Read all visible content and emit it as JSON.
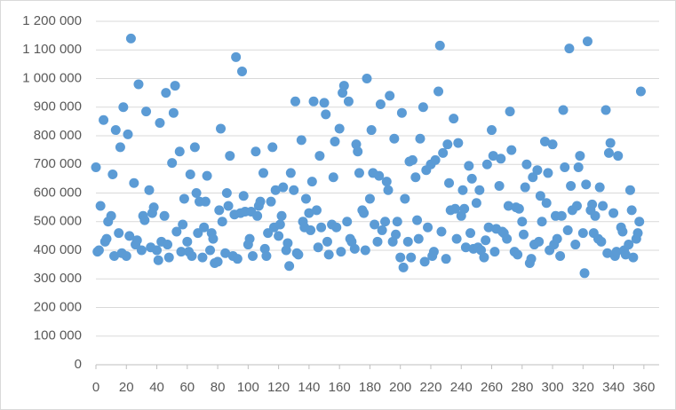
{
  "chart_data": {
    "type": "scatter",
    "color": "#5b9bd5",
    "grid": true,
    "xlim": [
      0,
      370
    ],
    "xticks": [
      0,
      20,
      40,
      60,
      80,
      100,
      120,
      140,
      160,
      180,
      200,
      220,
      240,
      260,
      280,
      300,
      320,
      340,
      360
    ],
    "ylim": [
      0,
      1200000
    ],
    "yticks": [
      0,
      {
        "value": 100000,
        "label": "100 000"
      },
      {
        "value": 200000,
        "label": "200 000"
      },
      {
        "value": 300000,
        "label": "300 000"
      },
      {
        "value": 400000,
        "label": "400 000"
      },
      {
        "value": 500000,
        "label": "500 000"
      },
      {
        "value": 600000,
        "label": "600 000"
      },
      {
        "value": 700000,
        "label": "700 000"
      },
      {
        "value": 800000,
        "label": "800 000"
      },
      {
        "value": 900000,
        "label": "900 000"
      },
      {
        "value": 1000000,
        "label": "1 000 000"
      },
      {
        "value": 1100000,
        "label": "1 100 000"
      },
      {
        "value": 1200000,
        "label": "1 200 000"
      }
    ],
    "x": [
      0,
      1,
      2,
      3,
      5,
      6,
      7,
      8,
      10,
      11,
      12,
      13,
      15,
      16,
      17,
      18,
      20,
      21,
      22,
      23,
      25,
      26,
      27,
      28,
      30,
      31,
      32,
      33,
      35,
      36,
      37,
      38,
      40,
      41,
      42,
      43,
      45,
      46,
      47,
      48,
      50,
      51,
      52,
      53,
      55,
      56,
      57,
      58,
      60,
      61,
      62,
      63,
      65,
      66,
      67,
      68,
      70,
      71,
      72,
      73,
      75,
      76,
      77,
      78,
      80,
      81,
      82,
      83,
      85,
      86,
      87,
      88,
      90,
      91,
      92,
      93,
      95,
      96,
      97,
      98,
      100,
      101,
      102,
      103,
      105,
      106,
      107,
      108,
      110,
      111,
      112,
      113,
      115,
      116,
      117,
      118,
      120,
      121,
      122,
      123,
      125,
      126,
      127,
      128,
      130,
      131,
      132,
      133,
      135,
      136,
      137,
      138,
      140,
      141,
      142,
      143,
      145,
      146,
      147,
      148,
      150,
      151,
      152,
      153,
      155,
      156,
      157,
      158,
      160,
      161,
      162,
      163,
      165,
      166,
      167,
      168,
      170,
      171,
      172,
      173,
      175,
      176,
      177,
      178,
      180,
      181,
      182,
      183,
      185,
      186,
      187,
      188,
      190,
      191,
      192,
      193,
      195,
      196,
      197,
      198,
      200,
      201,
      202,
      203,
      205,
      206,
      207,
      208,
      210,
      211,
      212,
      213,
      215,
      216,
      217,
      218,
      220,
      221,
      222,
      223,
      225,
      226,
      227,
      228,
      230,
      231,
      232,
      233,
      235,
      236,
      237,
      238,
      240,
      241,
      242,
      243,
      245,
      246,
      247,
      248,
      250,
      251,
      252,
      253,
      255,
      256,
      257,
      258,
      260,
      261,
      262,
      263,
      265,
      266,
      267,
      268,
      270,
      271,
      272,
      273,
      275,
      276,
      277,
      278,
      280,
      281,
      282,
      283,
      285,
      286,
      287,
      288,
      290,
      291,
      292,
      293,
      295,
      296,
      297,
      298,
      300,
      301,
      302,
      303,
      305,
      306,
      307,
      308,
      310,
      311,
      312,
      313,
      315,
      316,
      317,
      318,
      320,
      321,
      322,
      323,
      325,
      326,
      327,
      328,
      330,
      331,
      332,
      333,
      335,
      336,
      337,
      338,
      340,
      341,
      342,
      343,
      345,
      346,
      347,
      348,
      350,
      351,
      352,
      353,
      355,
      356,
      357,
      358
    ],
    "values": [
      690000,
      395000,
      400000,
      555000,
      855000,
      430000,
      440000,
      500000,
      520000,
      665000,
      380000,
      820000,
      460000,
      760000,
      390000,
      900000,
      380000,
      805000,
      450000,
      1140000,
      635000,
      420000,
      435000,
      980000,
      400000,
      520000,
      505000,
      885000,
      610000,
      410000,
      530000,
      550000,
      400000,
      365000,
      845000,
      430000,
      520000,
      950000,
      420000,
      375000,
      705000,
      880000,
      975000,
      465000,
      745000,
      395000,
      490000,
      580000,
      430000,
      395000,
      665000,
      380000,
      760000,
      600000,
      460000,
      570000,
      375000,
      480000,
      570000,
      660000,
      400000,
      460000,
      440000,
      355000,
      360000,
      540000,
      825000,
      500000,
      390000,
      600000,
      555000,
      730000,
      380000,
      525000,
      1075000,
      370000,
      530000,
      1025000,
      590000,
      535000,
      420000,
      440000,
      535000,
      380000,
      745000,
      520000,
      555000,
      570000,
      670000,
      405000,
      380000,
      460000,
      570000,
      760000,
      480000,
      610000,
      450000,
      490000,
      520000,
      620000,
      400000,
      425000,
      345000,
      670000,
      610000,
      920000,
      390000,
      385000,
      785000,
      500000,
      480000,
      580000,
      530000,
      470000,
      640000,
      920000,
      540000,
      410000,
      730000,
      480000,
      915000,
      875000,
      430000,
      385000,
      490000,
      655000,
      780000,
      480000,
      825000,
      395000,
      950000,
      975000,
      500000,
      920000,
      440000,
      430000,
      405000,
      770000,
      745000,
      670000,
      540000,
      530000,
      400000,
      1000000,
      580000,
      820000,
      670000,
      490000,
      430000,
      660000,
      910000,
      470000,
      500000,
      640000,
      610000,
      940000,
      430000,
      790000,
      455000,
      500000,
      375000,
      880000,
      340000,
      580000,
      430000,
      710000,
      375000,
      715000,
      655000,
      505000,
      440000,
      790000,
      900000,
      360000,
      680000,
      480000,
      700000,
      380000,
      395000,
      715000,
      955000,
      1115000,
      465000,
      740000,
      370000,
      770000,
      635000,
      540000,
      860000,
      545000,
      440000,
      775000,
      520000,
      610000,
      545000,
      410000,
      695000,
      460000,
      650000,
      405000,
      565000,
      410000,
      610000,
      400000,
      375000,
      435000,
      700000,
      480000,
      820000,
      730000,
      395000,
      475000,
      625000,
      720000,
      465000,
      460000,
      440000,
      555000,
      885000,
      750000,
      395000,
      550000,
      385000,
      545000,
      500000,
      455000,
      620000,
      700000,
      355000,
      370000,
      655000,
      420000,
      680000,
      430000,
      590000,
      500000,
      780000,
      565000,
      670000,
      400000,
      770000,
      420000,
      520000,
      440000,
      380000,
      520000,
      890000,
      690000,
      470000,
      1105000,
      625000,
      540000,
      420000,
      555000,
      690000,
      730000,
      460000,
      320000,
      630000,
      1130000,
      540000,
      560000,
      460000,
      520000,
      440000,
      620000,
      430000,
      555000,
      890000,
      390000,
      740000,
      775000,
      530000,
      380000,
      395000,
      730000,
      480000,
      465000,
      400000,
      385000,
      420000,
      610000,
      540000,
      375000,
      440000,
      460000,
      500000,
      955000
    ]
  }
}
